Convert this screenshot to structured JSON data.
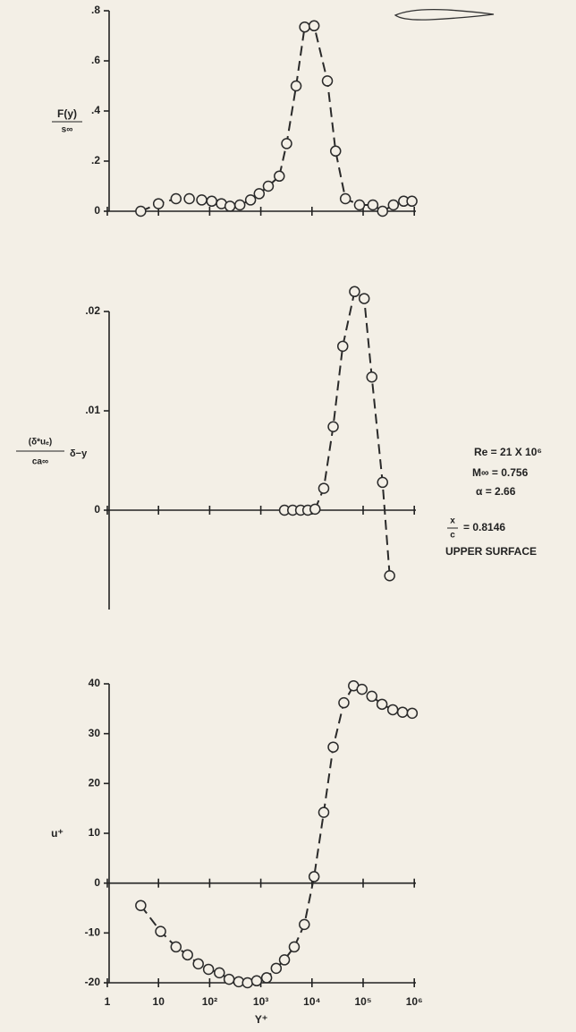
{
  "chart_data": [
    {
      "type": "line",
      "ylabel_numerator": "F(y)",
      "ylabel_denominator": "s∞",
      "color": "#2a2a2a",
      "markers": true,
      "linestyle": "dashed",
      "x": [
        4.5,
        10,
        22,
        40,
        70,
        110,
        170,
        250,
        390,
        630,
        930,
        1400,
        2300,
        3200,
        4900,
        7200,
        11000,
        20000,
        29000,
        45000,
        85000,
        155000,
        240000,
        390000,
        620000,
        900000
      ],
      "values": [
        0,
        0.03,
        0.05,
        0.05,
        0.045,
        0.04,
        0.03,
        0.02,
        0.025,
        0.045,
        0.07,
        0.1,
        0.14,
        0.27,
        0.5,
        0.735,
        0.74,
        0.52,
        0.24,
        0.05,
        0.025,
        0.025,
        0,
        0.025,
        0.04,
        0.04
      ],
      "xlim": [
        1,
        1000000
      ],
      "log_x": true,
      "ylim": [
        0,
        0.8
      ],
      "yticks": [
        0,
        {
          "value": 0.2,
          "label": ".2"
        },
        {
          "value": 0.4,
          "label": ".4"
        },
        {
          "value": 0.6,
          "label": ".6"
        },
        {
          "value": 0.8,
          "label": ".8"
        }
      ]
    },
    {
      "type": "line",
      "ylabel_numerator": "(δ*uₑ)",
      "ylabel_denominator": "ca∞",
      "ylabel_suffix": "δ−y",
      "color": "#2a2a2a",
      "markers": true,
      "linestyle": "dashed",
      "x": [
        2900,
        4200,
        6000,
        8300,
        11500,
        17000,
        26000,
        40000,
        68000,
        105000,
        148000,
        240000,
        330000
      ],
      "values": [
        0,
        0,
        0,
        0,
        0.0001,
        0.0022,
        0.0084,
        0.0165,
        0.022,
        0.0213,
        0.0134,
        0.0028,
        -0.0066
      ],
      "xlim": [
        1,
        1000000
      ],
      "log_x": true,
      "ylim": [
        -0.01,
        0.02
      ],
      "yticks": [
        0,
        {
          "value": 0.01,
          "label": ".01"
        },
        {
          "value": 0.02,
          "label": ".02"
        }
      ],
      "annotations": [
        "Re = 21 X 10⁶",
        "M∞ = 0.756",
        "α = 2.66",
        "x",
        "c",
        "= 0.8146",
        "UPPER SURFACE"
      ]
    },
    {
      "type": "line",
      "ylabel": "u⁺",
      "xlabel": "Y⁺",
      "color": "#2a2a2a",
      "markers": true,
      "linestyle": "dashed",
      "x": [
        4.5,
        11,
        22,
        37,
        60,
        95,
        155,
        240,
        370,
        550,
        830,
        1300,
        2000,
        2900,
        4500,
        7100,
        11000,
        17000,
        26000,
        42000,
        65000,
        95000,
        148000,
        234000,
        380000,
        590000,
        910000
      ],
      "values": [
        -4.5,
        -9.7,
        -12.8,
        -14.4,
        -16.2,
        -17.3,
        -18,
        -19.3,
        -19.8,
        -20,
        -19.6,
        -19,
        -17.1,
        -15.4,
        -12.8,
        -8.3,
        1.3,
        14.2,
        27.3,
        36.2,
        39.6,
        38.9,
        37.5,
        35.9,
        34.8,
        34.3,
        34.1
      ],
      "xlim": [
        1,
        1000000
      ],
      "log_x": true,
      "ylim": [
        -20,
        40
      ],
      "yticks": [
        -20,
        -10,
        0,
        10,
        20,
        30,
        40
      ],
      "xticks": [
        1,
        10,
        {
          "value": 100,
          "label": "10²"
        },
        {
          "value": 1000,
          "label": "10³"
        },
        {
          "value": 10000,
          "label": "10⁴"
        },
        {
          "value": 100000,
          "label": "10⁵"
        },
        {
          "value": 1000000,
          "label": "10⁶"
        }
      ]
    }
  ]
}
